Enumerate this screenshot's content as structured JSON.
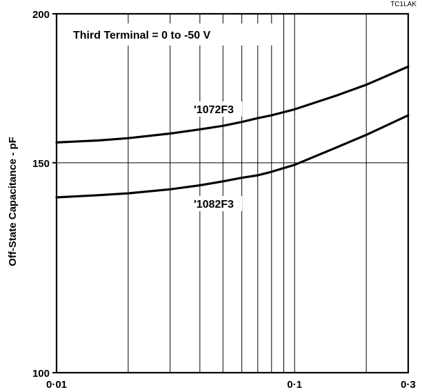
{
  "chart_data": {
    "type": "line",
    "code": "TC1LAK",
    "title": "",
    "xlabel": "",
    "ylabel": "Off-State Capacitance - pF",
    "x_scale": "log",
    "y_scale": "log",
    "xlim": [
      0.01,
      0.3
    ],
    "ylim": [
      100,
      200
    ],
    "x_ticks": [
      0.01,
      0.02,
      0.03,
      0.04,
      0.05,
      0.06,
      0.07,
      0.08,
      0.09,
      0.1,
      0.2,
      0.3
    ],
    "x_tick_labels": [
      {
        "value": 0.01,
        "label": "0·01"
      },
      {
        "value": 0.1,
        "label": "0·1"
      },
      {
        "value": 0.3,
        "label": "0·3"
      }
    ],
    "y_ticks": [
      100,
      150,
      200
    ],
    "y_tick_labels": [
      {
        "value": 100,
        "label": "100"
      },
      {
        "value": 150,
        "label": "150"
      },
      {
        "value": 200,
        "label": "200"
      }
    ],
    "grid": true,
    "annotation": "Third Terminal = 0 to -50 V",
    "series": [
      {
        "name": "'1072F3",
        "x": [
          0.01,
          0.015,
          0.02,
          0.03,
          0.04,
          0.05,
          0.06,
          0.07,
          0.08,
          0.1,
          0.15,
          0.2,
          0.3
        ],
        "y": [
          156,
          156.6,
          157.3,
          158.7,
          160.0,
          161.1,
          162.3,
          163.5,
          164.4,
          166.3,
          170.8,
          174.4,
          180.6
        ]
      },
      {
        "name": "'1082F3",
        "x": [
          0.01,
          0.015,
          0.02,
          0.03,
          0.04,
          0.05,
          0.06,
          0.07,
          0.08,
          0.1,
          0.15,
          0.2,
          0.3
        ],
        "y": [
          140.3,
          140.9,
          141.4,
          142.5,
          143.6,
          144.7,
          145.7,
          146.4,
          147.4,
          149.4,
          154.5,
          158.3,
          164.4
        ]
      }
    ]
  }
}
